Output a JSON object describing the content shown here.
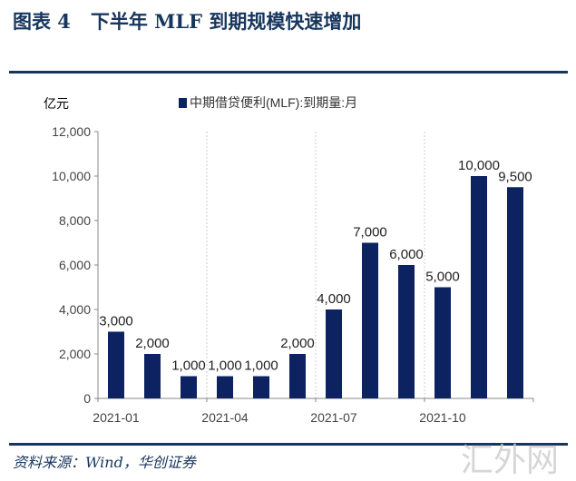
{
  "header": {
    "title": "图表 4   下半年 MLF 到期规模快速增加"
  },
  "footer": {
    "source": "资料来源：Wind，华创证券",
    "watermark": "汇外网"
  },
  "chart_data": {
    "type": "bar",
    "title": "下半年 MLF 到期规模快速增加",
    "ylabel": "亿元",
    "ylim": [
      0,
      12000
    ],
    "yticks": [
      0,
      2000,
      4000,
      6000,
      8000,
      10000,
      12000
    ],
    "ytick_labels": [
      "0",
      "2,000",
      "4,000",
      "6,000",
      "8,000",
      "10,000",
      "12,000"
    ],
    "categories": [
      "2021-01",
      "2021-02",
      "2021-03",
      "2021-04",
      "2021-05",
      "2021-06",
      "2021-07",
      "2021-08",
      "2021-09",
      "2021-10",
      "2021-11",
      "2021-12"
    ],
    "xtick_labels": [
      "2021-01",
      "2021-04",
      "2021-07",
      "2021-10"
    ],
    "series": [
      {
        "name": "中期借贷便利(MLF):到期量:月",
        "color": "#0d2261",
        "values": [
          3000,
          2000,
          1000,
          1000,
          1000,
          2000,
          4000,
          7000,
          6000,
          5000,
          10000,
          9500
        ],
        "labels": [
          "3,000",
          "2,000",
          "1,000",
          "1,000",
          "1,000",
          "2,000",
          "4,000",
          "7,000",
          "6,000",
          "5,000",
          "10,000",
          "9,500"
        ]
      }
    ],
    "legend": "top-center",
    "grid": "vertical dotted"
  }
}
